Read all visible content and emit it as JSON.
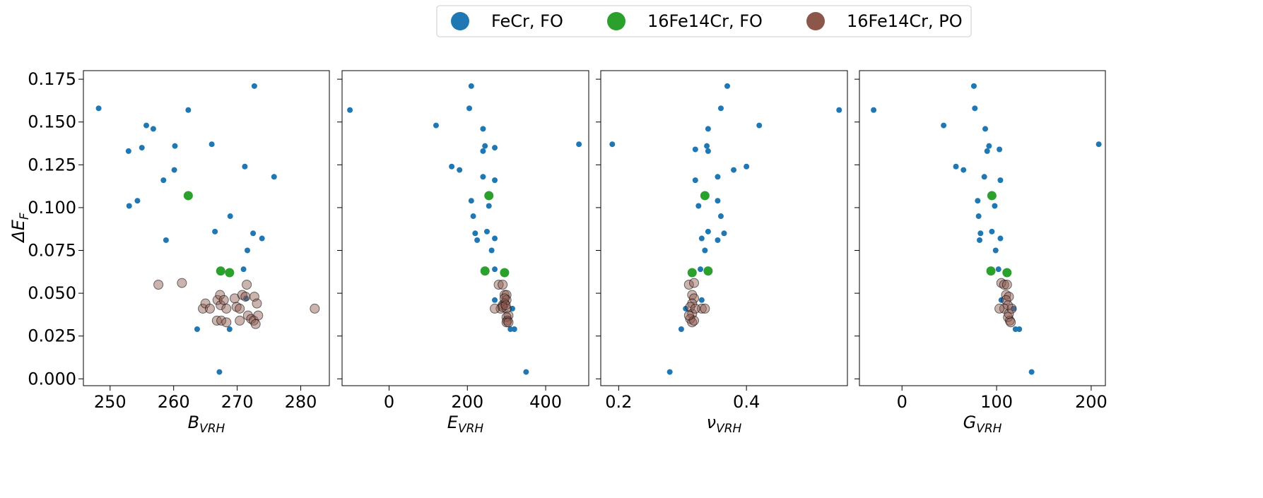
{
  "legend": [
    {
      "label": "FeCr, FO",
      "color": "#1f77b4"
    },
    {
      "label": "16Fe14Cr, FO",
      "color": "#2ca02c"
    },
    {
      "label": "16Fe14Cr, PO",
      "color": "#8c564b"
    }
  ],
  "y_axis": {
    "label_main": "ΔE",
    "label_sub": "F"
  },
  "chart_data": {
    "type": "scatter",
    "legend_position": "top-center",
    "grid": false,
    "ylim": [
      -0.004,
      0.18
    ],
    "yticks": [
      0.0,
      0.025,
      0.05,
      0.075,
      0.1,
      0.125,
      0.15,
      0.175
    ],
    "ytick_labels": [
      "0.000",
      "0.025",
      "0.050",
      "0.075",
      "0.100",
      "0.125",
      "0.150",
      "0.175"
    ],
    "panels": [
      {
        "xlabel_main": "B",
        "xlabel_sub": "VRH",
        "xlim": [
          245.8,
          284.5
        ],
        "xticks": [
          250,
          260,
          270,
          280
        ],
        "xtick_labels": [
          "250",
          "260",
          "270",
          "280"
        ],
        "series": [
          {
            "name": "FeCr, FO",
            "points": [
              [
                248.2,
                0.158
              ],
              [
                252.9,
                0.133
              ],
              [
                255,
                0.135
              ],
              [
                255.7,
                0.148
              ],
              [
                256.8,
                0.146
              ],
              [
                262.3,
                0.157
              ],
              [
                272.7,
                0.171
              ],
              [
                266,
                0.137
              ],
              [
                260.2,
                0.136
              ],
              [
                260.1,
                0.122
              ],
              [
                258.4,
                0.116
              ],
              [
                271.2,
                0.124
              ],
              [
                275.8,
                0.118
              ],
              [
                253,
                0.101
              ],
              [
                254.3,
                0.104
              ],
              [
                268.9,
                0.095
              ],
              [
                258.8,
                0.081
              ],
              [
                266.5,
                0.086
              ],
              [
                272.5,
                0.085
              ],
              [
                273.9,
                0.082
              ],
              [
                271.6,
                0.075
              ],
              [
                271,
                0.064
              ],
              [
                263.7,
                0.029
              ],
              [
                268.8,
                0.029
              ],
              [
                267.2,
                0.004
              ],
              [
                271.4,
                0.047
              ]
            ]
          },
          {
            "name": "16Fe14Cr, FO",
            "points": [
              [
                262.3,
                0.107
              ],
              [
                267.4,
                0.063
              ],
              [
                268.8,
                0.062
              ]
            ]
          },
          {
            "name": "16Fe14Cr, PO",
            "points": [
              [
                257.6,
                0.055
              ],
              [
                261.3,
                0.056
              ],
              [
                264.6,
                0.041
              ],
              [
                265,
                0.044
              ],
              [
                265.7,
                0.041
              ],
              [
                266.9,
                0.046
              ],
              [
                267.3,
                0.049
              ],
              [
                267.4,
                0.043
              ],
              [
                267.9,
                0.046
              ],
              [
                268.3,
                0.041
              ],
              [
                266.8,
                0.034
              ],
              [
                267.5,
                0.034
              ],
              [
                268.3,
                0.033
              ],
              [
                269.6,
                0.047
              ],
              [
                269.9,
                0.042
              ],
              [
                270.4,
                0.041
              ],
              [
                270.8,
                0.049
              ],
              [
                271.3,
                0.048
              ],
              [
                271.5,
                0.055
              ],
              [
                271.7,
                0.037
              ],
              [
                272.2,
                0.035
              ],
              [
                272.6,
                0.034
              ],
              [
                272.7,
                0.048
              ],
              [
                273.1,
                0.044
              ],
              [
                273.3,
                0.037
              ],
              [
                272.9,
                0.032
              ],
              [
                270.4,
                0.034
              ],
              [
                282.2,
                0.041
              ]
            ]
          }
        ]
      },
      {
        "xlabel_main": "E",
        "xlabel_sub": "VRH",
        "xlim": [
          -120,
          510
        ],
        "xticks": [
          0,
          200,
          400
        ],
        "xtick_labels": [
          "0",
          "200",
          "400"
        ],
        "series": [
          {
            "name": "FeCr, FO",
            "points": [
              [
                -100,
                0.157
              ],
              [
                210,
                0.171
              ],
              [
                205,
                0.158
              ],
              [
                120,
                0.148
              ],
              [
                240,
                0.146
              ],
              [
                245,
                0.136
              ],
              [
                240,
                0.133
              ],
              [
                270,
                0.135
              ],
              [
                485,
                0.137
              ],
              [
                160,
                0.124
              ],
              [
                180,
                0.122
              ],
              [
                240,
                0.118
              ],
              [
                270,
                0.116
              ],
              [
                255,
                0.101
              ],
              [
                210,
                0.104
              ],
              [
                215,
                0.095
              ],
              [
                250,
                0.086
              ],
              [
                220,
                0.085
              ],
              [
                225,
                0.081
              ],
              [
                270,
                0.082
              ],
              [
                262,
                0.075
              ],
              [
                270,
                0.064
              ],
              [
                270,
                0.046
              ],
              [
                315,
                0.041
              ],
              [
                320,
                0.029
              ],
              [
                310,
                0.029
              ],
              [
                350,
                0.004
              ]
            ]
          },
          {
            "name": "16Fe14Cr, FO",
            "points": [
              [
                255,
                0.107
              ],
              [
                245,
                0.063
              ],
              [
                295,
                0.062
              ]
            ]
          },
          {
            "name": "16Fe14Cr, PO",
            "points": [
              [
                280,
                0.055
              ],
              [
                290,
                0.055
              ],
              [
                295,
                0.049
              ],
              [
                300,
                0.049
              ],
              [
                300,
                0.046
              ],
              [
                295,
                0.044
              ],
              [
                290,
                0.043
              ],
              [
                285,
                0.041
              ],
              [
                300,
                0.041
              ],
              [
                270,
                0.041
              ],
              [
                305,
                0.037
              ],
              [
                300,
                0.036
              ],
              [
                302,
                0.034
              ],
              [
                300,
                0.033
              ],
              [
                305,
                0.033
              ],
              [
                290,
                0.042
              ],
              [
                295,
                0.047
              ],
              [
                298,
                0.043
              ]
            ]
          }
        ]
      },
      {
        "xlabel_main": "ν",
        "xlabel_sub": "VRH",
        "xlim": [
          0.172,
          0.558
        ],
        "xticks": [
          0.2,
          0.4
        ],
        "xtick_labels": [
          "0.2",
          "0.4"
        ],
        "series": [
          {
            "name": "FeCr, FO",
            "points": [
              [
                0.37,
                0.171
              ],
              [
                0.19,
                0.137
              ],
              [
                0.36,
                0.158
              ],
              [
                0.545,
                0.157
              ],
              [
                0.42,
                0.148
              ],
              [
                0.34,
                0.146
              ],
              [
                0.32,
                0.134
              ],
              [
                0.338,
                0.136
              ],
              [
                0.34,
                0.133
              ],
              [
                0.4,
                0.124
              ],
              [
                0.38,
                0.122
              ],
              [
                0.355,
                0.118
              ],
              [
                0.32,
                0.116
              ],
              [
                0.335,
                0.107
              ],
              [
                0.325,
                0.101
              ],
              [
                0.355,
                0.104
              ],
              [
                0.36,
                0.095
              ],
              [
                0.34,
                0.086
              ],
              [
                0.365,
                0.085
              ],
              [
                0.33,
                0.082
              ],
              [
                0.355,
                0.081
              ],
              [
                0.335,
                0.075
              ],
              [
                0.328,
                0.064
              ],
              [
                0.33,
                0.046
              ],
              [
                0.305,
                0.041
              ],
              [
                0.298,
                0.029
              ],
              [
                0.28,
                0.004
              ]
            ]
          },
          {
            "name": "16Fe14Cr, FO",
            "points": [
              [
                0.335,
                0.107
              ],
              [
                0.315,
                0.062
              ],
              [
                0.34,
                0.063
              ]
            ]
          },
          {
            "name": "16Fe14Cr, PO",
            "points": [
              [
                0.31,
                0.055
              ],
              [
                0.318,
                0.056
              ],
              [
                0.315,
                0.049
              ],
              [
                0.318,
                0.047
              ],
              [
                0.315,
                0.044
              ],
              [
                0.312,
                0.042
              ],
              [
                0.33,
                0.041
              ],
              [
                0.335,
                0.041
              ],
              [
                0.315,
                0.038
              ],
              [
                0.312,
                0.035
              ],
              [
                0.315,
                0.033
              ],
              [
                0.318,
                0.034
              ],
              [
                0.32,
                0.041
              ],
              [
                0.31,
                0.037
              ]
            ]
          }
        ]
      },
      {
        "xlabel_main": "G",
        "xlabel_sub": "VRH",
        "xlim": [
          -45,
          215
        ],
        "xticks": [
          0,
          100,
          200
        ],
        "xtick_labels": [
          "0",
          "100",
          "200"
        ],
        "series": [
          {
            "name": "FeCr, FO",
            "points": [
              [
                -30,
                0.157
              ],
              [
                76,
                0.171
              ],
              [
                77,
                0.158
              ],
              [
                44,
                0.148
              ],
              [
                88,
                0.146
              ],
              [
                92,
                0.136
              ],
              [
                90,
                0.133
              ],
              [
                103,
                0.134
              ],
              [
                208,
                0.137
              ],
              [
                57,
                0.124
              ],
              [
                65,
                0.122
              ],
              [
                87,
                0.118
              ],
              [
                104,
                0.116
              ],
              [
                80,
                0.104
              ],
              [
                98,
                0.101
              ],
              [
                81,
                0.095
              ],
              [
                95,
                0.086
              ],
              [
                83,
                0.085
              ],
              [
                82,
                0.081
              ],
              [
                104,
                0.082
              ],
              [
                99,
                0.075
              ],
              [
                102,
                0.064
              ],
              [
                105,
                0.046
              ],
              [
                118,
                0.041
              ],
              [
                120,
                0.029
              ],
              [
                124,
                0.029
              ],
              [
                137,
                0.004
              ]
            ]
          },
          {
            "name": "16Fe14Cr, FO",
            "points": [
              [
                95,
                0.107
              ],
              [
                94,
                0.063
              ],
              [
                111,
                0.062
              ]
            ]
          },
          {
            "name": "16Fe14Cr, PO",
            "points": [
              [
                105,
                0.056
              ],
              [
                108,
                0.055
              ],
              [
                111,
                0.055
              ],
              [
                110,
                0.049
              ],
              [
                113,
                0.048
              ],
              [
                110,
                0.046
              ],
              [
                112,
                0.043
              ],
              [
                108,
                0.041
              ],
              [
                103,
                0.041
              ],
              [
                112,
                0.036
              ],
              [
                114,
                0.034
              ],
              [
                115,
                0.033
              ],
              [
                113,
                0.038
              ],
              [
                116,
                0.041
              ]
            ]
          }
        ]
      }
    ]
  }
}
